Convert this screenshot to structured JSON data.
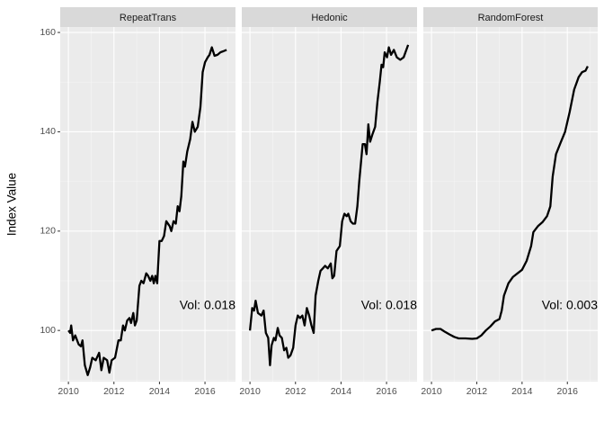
{
  "chart_data": [
    {
      "type": "line",
      "title": "RepeatTrans",
      "y_label": "Index Value",
      "annotation": "Vol: 0.018",
      "xlim": [
        2009.64,
        2017.34
      ],
      "ylim": [
        89.7,
        161.1
      ],
      "xticks": [
        2010,
        2012,
        2014,
        2016
      ],
      "yticks": [
        100,
        120,
        140,
        160
      ],
      "x_minor_ticks": [
        2011,
        2013,
        2015,
        2017
      ],
      "y_minor_ticks": [
        90,
        110,
        130,
        150
      ],
      "grid": true,
      "series": [
        {
          "color": "#000000",
          "x": [
            2010.0,
            2010.08,
            2010.12,
            2010.2,
            2010.3,
            2010.45,
            2010.55,
            2010.62,
            2010.72,
            2010.85,
            2010.95,
            2011.05,
            2011.2,
            2011.35,
            2011.45,
            2011.55,
            2011.7,
            2011.8,
            2011.9,
            2012.05,
            2012.2,
            2012.3,
            2012.4,
            2012.48,
            2012.58,
            2012.68,
            2012.75,
            2012.85,
            2012.92,
            2013.0,
            2013.12,
            2013.2,
            2013.3,
            2013.42,
            2013.5,
            2013.6,
            2013.68,
            2013.75,
            2013.82,
            2013.9,
            2014.0,
            2014.1,
            2014.2,
            2014.3,
            2014.45,
            2014.52,
            2014.62,
            2014.72,
            2014.8,
            2014.88,
            2014.96,
            2015.05,
            2015.12,
            2015.22,
            2015.35,
            2015.45,
            2015.55,
            2015.68,
            2015.8,
            2015.9,
            2016.0,
            2016.12,
            2016.2,
            2016.3,
            2016.42,
            2016.55,
            2016.68,
            2016.8,
            2016.95
          ],
          "values": [
            100,
            99.5,
            101,
            98,
            99,
            97.2,
            96.8,
            98,
            93,
            91,
            92.5,
            94.5,
            94,
            95.5,
            92,
            94.5,
            94,
            91.5,
            94,
            94.5,
            98,
            98,
            101,
            100,
            102,
            102.5,
            101.5,
            103.5,
            101,
            102,
            109,
            110,
            109.5,
            111.5,
            111,
            110,
            111,
            109.5,
            111,
            109.5,
            118,
            118,
            119,
            122,
            121,
            120,
            122,
            121.5,
            125,
            124,
            127,
            134,
            133,
            136,
            138.5,
            142,
            140,
            141,
            145,
            152,
            154,
            155,
            155.5,
            157,
            155.3,
            155.5,
            156,
            156.2,
            156.5
          ]
        }
      ]
    },
    {
      "type": "line",
      "title": "Hedonic",
      "annotation": "Vol: 0.018",
      "xlim": [
        2009.64,
        2017.34
      ],
      "ylim": [
        89.7,
        161.1
      ],
      "xticks": [
        2010,
        2012,
        2014,
        2016
      ],
      "yticks": [
        100,
        120,
        140,
        160
      ],
      "x_minor_ticks": [
        2011,
        2013,
        2015,
        2017
      ],
      "y_minor_ticks": [
        90,
        110,
        130,
        150
      ],
      "grid": true,
      "series": [
        {
          "color": "#000000",
          "x": [
            2010.0,
            2010.1,
            2010.18,
            2010.25,
            2010.35,
            2010.5,
            2010.6,
            2010.7,
            2010.8,
            2010.88,
            2010.95,
            2011.05,
            2011.12,
            2011.22,
            2011.3,
            2011.4,
            2011.5,
            2011.6,
            2011.68,
            2011.78,
            2011.9,
            2012.0,
            2012.1,
            2012.2,
            2012.3,
            2012.4,
            2012.5,
            2012.6,
            2012.7,
            2012.8,
            2012.88,
            2013.0,
            2013.1,
            2013.2,
            2013.3,
            2013.42,
            2013.55,
            2013.62,
            2013.7,
            2013.8,
            2013.95,
            2014.05,
            2014.15,
            2014.25,
            2014.32,
            2014.42,
            2014.52,
            2014.62,
            2014.72,
            2014.8,
            2014.95,
            2015.05,
            2015.12,
            2015.2,
            2015.28,
            2015.38,
            2015.5,
            2015.6,
            2015.7,
            2015.78,
            2015.85,
            2015.92,
            2016.02,
            2016.1,
            2016.2,
            2016.32,
            2016.45,
            2016.6,
            2016.75,
            2016.95
          ],
          "values": [
            100,
            104.5,
            104,
            106,
            103.5,
            103,
            104,
            99.5,
            98.5,
            93,
            97,
            98.5,
            98,
            100.5,
            99,
            98.5,
            96,
            96.5,
            94.5,
            95,
            96.5,
            101,
            103,
            102.5,
            103,
            101,
            104.5,
            103,
            101,
            99.5,
            107,
            110,
            112,
            112.5,
            113,
            112.5,
            113.5,
            110.5,
            111,
            116,
            117,
            122,
            123.5,
            123,
            123.5,
            122,
            121.5,
            121.5,
            125,
            130,
            137.5,
            137.5,
            135.5,
            141.5,
            138,
            139.5,
            141,
            146,
            150,
            153.5,
            153,
            156,
            155,
            157,
            155.5,
            156.5,
            155,
            154.5,
            155,
            157.5
          ]
        }
      ]
    },
    {
      "type": "line",
      "title": "RandomForest",
      "annotation": "Vol: 0.003",
      "xlim": [
        2009.64,
        2017.34
      ],
      "ylim": [
        89.7,
        161.1
      ],
      "xticks": [
        2010,
        2012,
        2014,
        2016
      ],
      "yticks": [
        100,
        120,
        140,
        160
      ],
      "x_minor_ticks": [
        2011,
        2013,
        2015,
        2017
      ],
      "y_minor_ticks": [
        90,
        110,
        130,
        150
      ],
      "grid": true,
      "series": [
        {
          "color": "#000000",
          "x": [
            2010.0,
            2010.2,
            2010.4,
            2010.6,
            2010.8,
            2011.0,
            2011.2,
            2011.5,
            2011.8,
            2012.0,
            2012.2,
            2012.4,
            2012.6,
            2012.8,
            2013.0,
            2013.1,
            2013.2,
            2013.4,
            2013.6,
            2013.8,
            2014.0,
            2014.2,
            2014.4,
            2014.5,
            2014.7,
            2014.9,
            2015.1,
            2015.25,
            2015.35,
            2015.5,
            2015.7,
            2015.9,
            2016.1,
            2016.3,
            2016.5,
            2016.65,
            2016.8,
            2016.9
          ],
          "values": [
            100,
            100.3,
            100.3,
            99.7,
            99.2,
            98.7,
            98.4,
            98.4,
            98.3,
            98.4,
            99,
            100,
            100.8,
            101.8,
            102.3,
            104,
            107,
            109.5,
            110.8,
            111.5,
            112.2,
            114,
            117,
            119.8,
            121,
            121.8,
            123,
            125,
            131,
            135.5,
            137.8,
            140,
            144,
            148.5,
            151,
            152,
            152.3,
            153.2
          ]
        }
      ]
    }
  ]
}
